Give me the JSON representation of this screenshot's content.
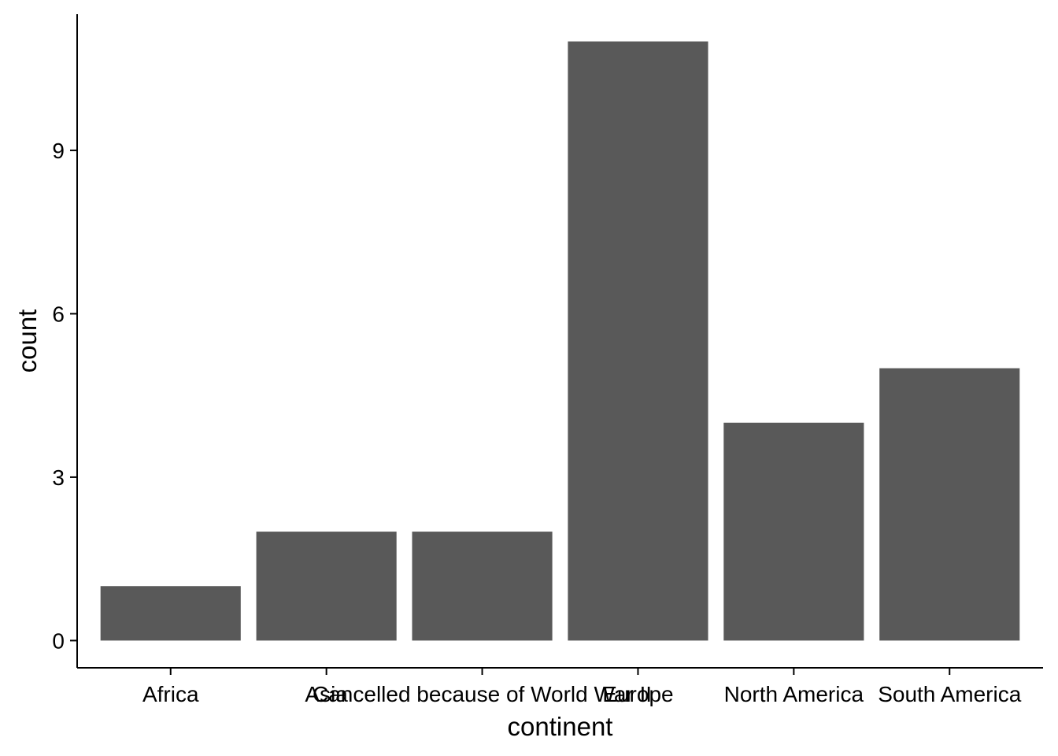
{
  "chart_data": {
    "type": "bar",
    "categories": [
      "Africa",
      "Asia",
      "Cancelled because of World War II",
      "Europe",
      "North America",
      "South America"
    ],
    "values": [
      1,
      2,
      2,
      11,
      4,
      5
    ],
    "title": "",
    "xlabel": "continent",
    "ylabel": "count",
    "ylim": [
      -0.5,
      11.5
    ],
    "yticks": [
      0,
      3,
      6,
      9
    ],
    "grid": false,
    "bar_color": "#595959"
  }
}
